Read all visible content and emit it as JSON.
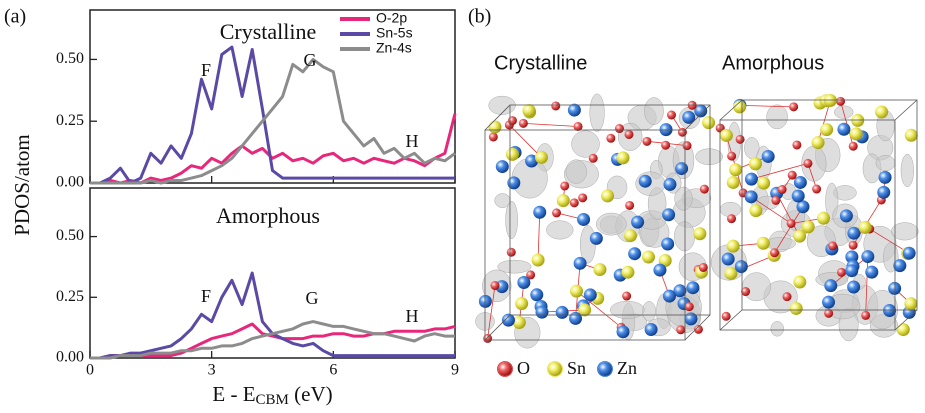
{
  "panel_labels": [
    "(a)",
    "(b)"
  ],
  "chart_data": [
    {
      "type": "line",
      "ylabel": "PDOS/atom",
      "annotations": [
        "Crystalline",
        "F",
        "G",
        "H"
      ],
      "x": [
        0,
        0.25,
        0.5,
        0.75,
        1,
        1.25,
        1.5,
        1.75,
        2,
        2.25,
        2.5,
        2.75,
        3,
        3.25,
        3.5,
        3.75,
        4,
        4.25,
        4.5,
        4.75,
        5,
        5.25,
        5.5,
        5.75,
        6,
        6.25,
        6.5,
        6.75,
        7,
        7.25,
        7.5,
        7.75,
        8,
        8.25,
        8.5,
        8.75,
        9
      ],
      "series": [
        {
          "name": "O-2p",
          "color": "#e8267a",
          "values": [
            0,
            0,
            0.01,
            0,
            0.01,
            0,
            0.02,
            0.01,
            0.02,
            0.04,
            0.07,
            0.06,
            0.1,
            0.08,
            0.12,
            0.15,
            0.12,
            0.14,
            0.1,
            0.12,
            0.09,
            0.1,
            0.08,
            0.11,
            0.12,
            0.09,
            0.1,
            0.08,
            0.1,
            0.09,
            0.08,
            0.1,
            0.09,
            0.07,
            0.1,
            0.12,
            0.28
          ]
        },
        {
          "name": "Sn-5s",
          "color": "#5a4aa6",
          "values": [
            0,
            0,
            0.02,
            0.06,
            0,
            0.02,
            0.12,
            0.08,
            0.15,
            0.1,
            0.2,
            0.42,
            0.3,
            0.52,
            0.55,
            0.35,
            0.54,
            0.3,
            0.05,
            0.02,
            0.02,
            0.02,
            0.02,
            0.02,
            0.02,
            0.02,
            0.02,
            0.02,
            0.02,
            0.02,
            0.02,
            0.02,
            0.02,
            0.02,
            0.02,
            0.02,
            0.02
          ]
        },
        {
          "name": "Zn-4s",
          "color": "#8c8c8c",
          "values": [
            0,
            0,
            0,
            0,
            0,
            0,
            0.01,
            0,
            0.01,
            0.01,
            0.02,
            0.03,
            0.05,
            0.07,
            0.1,
            0.15,
            0.2,
            0.25,
            0.3,
            0.35,
            0.48,
            0.45,
            0.5,
            0.47,
            0.45,
            0.25,
            0.2,
            0.15,
            0.18,
            0.12,
            0.14,
            0.1,
            0.12,
            0.08,
            0.1,
            0.09,
            0.12
          ]
        }
      ],
      "xlim": [
        0,
        9
      ],
      "xticks": [
        0,
        3,
        6,
        9
      ],
      "show_xtick_labels": false,
      "ylim": [
        0,
        0.7
      ],
      "yticks": [
        {
          "value": 0,
          "label": "0.00"
        },
        0.25,
        {
          "value": 0.5,
          "label": "0.50"
        }
      ],
      "legend": "upper right"
    },
    {
      "type": "line",
      "annotations": [
        "Amorphous",
        "F",
        "G",
        "H"
      ],
      "xlabel": [
        "E - E",
        "CBM",
        " (eV)"
      ],
      "x": [
        0,
        0.25,
        0.5,
        0.75,
        1,
        1.25,
        1.5,
        1.75,
        2,
        2.25,
        2.5,
        2.75,
        3,
        3.25,
        3.5,
        3.75,
        4,
        4.25,
        4.5,
        4.75,
        5,
        5.25,
        5.5,
        5.75,
        6,
        6.25,
        6.5,
        6.75,
        7,
        7.25,
        7.5,
        7.75,
        8,
        8.25,
        8.5,
        8.75,
        9
      ],
      "series": [
        {
          "name": "O-2p",
          "color": "#e8267a",
          "values": [
            0,
            0,
            0.01,
            0.01,
            0.01,
            0.01,
            0.01,
            0.01,
            0.01,
            0.02,
            0.04,
            0.06,
            0.08,
            0.09,
            0.1,
            0.12,
            0.14,
            0.1,
            0.09,
            0.08,
            0.08,
            0.08,
            0.09,
            0.09,
            0.1,
            0.1,
            0.09,
            0.09,
            0.1,
            0.1,
            0.11,
            0.11,
            0.11,
            0.11,
            0.12,
            0.12,
            0.13
          ]
        },
        {
          "name": "Sn-5s",
          "color": "#5a4aa6",
          "values": [
            0,
            0,
            0.01,
            0.01,
            0.02,
            0.02,
            0.03,
            0.04,
            0.05,
            0.08,
            0.12,
            0.18,
            0.15,
            0.25,
            0.32,
            0.22,
            0.35,
            0.15,
            0.1,
            0.08,
            0.06,
            0.05,
            0.06,
            0.03,
            0.01,
            0.01,
            0.01,
            0.01,
            0.01,
            0.01,
            0.01,
            0.01,
            0.01,
            0.01,
            0.01,
            0.01,
            0.01
          ]
        },
        {
          "name": "Zn-4s",
          "color": "#8c8c8c",
          "values": [
            0,
            0,
            0,
            0.01,
            0.01,
            0.01,
            0.02,
            0.02,
            0.02,
            0.03,
            0.03,
            0.04,
            0.04,
            0.05,
            0.05,
            0.06,
            0.08,
            0.09,
            0.1,
            0.11,
            0.12,
            0.14,
            0.15,
            0.14,
            0.13,
            0.13,
            0.12,
            0.11,
            0.1,
            0.1,
            0.09,
            0.08,
            0.07,
            0.09,
            0.1,
            0.09,
            0.09
          ]
        }
      ],
      "xlim": [
        0,
        9
      ],
      "xticks": [
        0,
        3,
        6,
        9
      ],
      "show_xtick_labels": true,
      "ylim": [
        0,
        0.7
      ],
      "yticks": [
        {
          "value": 0,
          "label": "0.00"
        },
        0.25,
        {
          "value": 0.5,
          "label": "0.50"
        }
      ],
      "legend": "none"
    }
  ],
  "structures": {
    "titles": [
      "Crystalline",
      "Amorphous"
    ],
    "atoms": [
      {
        "label": "O",
        "color": "#d42a2a"
      },
      {
        "label": "Sn",
        "color": "#e6e23a"
      },
      {
        "label": "Zn",
        "color": "#2a6fd0"
      }
    ]
  }
}
